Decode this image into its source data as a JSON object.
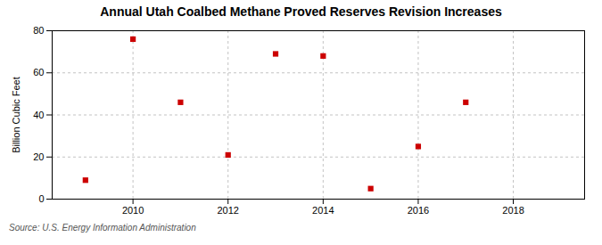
{
  "chart_data": {
    "type": "scatter",
    "title": "Annual Utah Coalbed Methane Proved Reserves Revision Increases",
    "ylabel": "Billion Cubic Feet",
    "annotations": [
      "Source: U.S. Energy Information Administration"
    ],
    "x": [
      2009,
      2010,
      2011,
      2012,
      2013,
      2014,
      2015,
      2016,
      2017
    ],
    "values": [
      9,
      76,
      46,
      21,
      69,
      68,
      5,
      25,
      46
    ],
    "color": "#cc0000",
    "marker": "square",
    "xlim": [
      2008.3,
      2019.5
    ],
    "xticks": [
      2010,
      2012,
      2014,
      2016,
      2018
    ],
    "ylim": [
      0,
      80
    ],
    "yticks": [
      0,
      20,
      40,
      60,
      80
    ],
    "grid": true
  }
}
